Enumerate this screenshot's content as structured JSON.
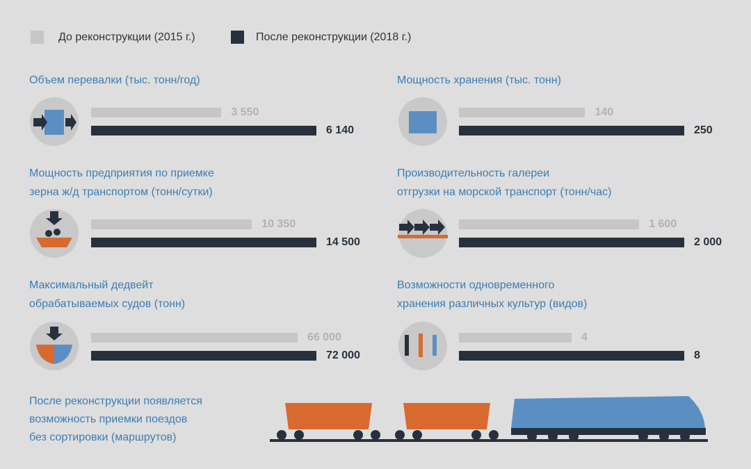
{
  "legend": [
    {
      "name": "До реконструкции (2015 г.)",
      "color": "#c6c6c6"
    },
    {
      "name": "После реконструкции (2018 г.)",
      "color": "#27313d"
    }
  ],
  "chart_data": [
    {
      "type": "bar",
      "orientation": "horizontal",
      "title": "Объем перевалки (тыс. тонн/год)",
      "values": [
        3550,
        6140
      ],
      "value_labels": [
        "3 550",
        "6 140"
      ],
      "xlim": [
        0,
        6140
      ]
    },
    {
      "type": "bar",
      "orientation": "horizontal",
      "title": "Мощность хранения (тыс. тонн)",
      "values": [
        140,
        250
      ],
      "xlim": [
        0,
        250
      ]
    },
    {
      "type": "bar",
      "orientation": "horizontal",
      "title": "Мощность предприятия по приемке\nзерна ж/д транспортом (тонн/сутки)",
      "values": [
        10350,
        14500
      ],
      "value_labels": [
        "10 350",
        "14 500"
      ],
      "xlim": [
        0,
        14500
      ]
    },
    {
      "type": "bar",
      "orientation": "horizontal",
      "title": "Производительность галереи\nотгрузки на морской транспорт (тонн/час)",
      "values": [
        1600,
        2000
      ],
      "value_labels": [
        "1 600",
        "2 000"
      ],
      "xlim": [
        0,
        2000
      ]
    },
    {
      "type": "bar",
      "orientation": "horizontal",
      "title": "Максимальный дедвейт\nобрабатываемых судов (тонн)",
      "values": [
        66000,
        72000
      ],
      "value_labels": [
        "66 000",
        "72 000"
      ],
      "xlim": [
        0,
        72000
      ]
    },
    {
      "type": "bar",
      "orientation": "horizontal",
      "title": "Возможности одновременного\nхранения различных культур (видов)",
      "values": [
        4,
        8
      ],
      "xlim": [
        0,
        8
      ]
    }
  ],
  "note": "После реконструкции появляется\nвозможность приемки поездов\nбез сортировки (маршрутов)"
}
